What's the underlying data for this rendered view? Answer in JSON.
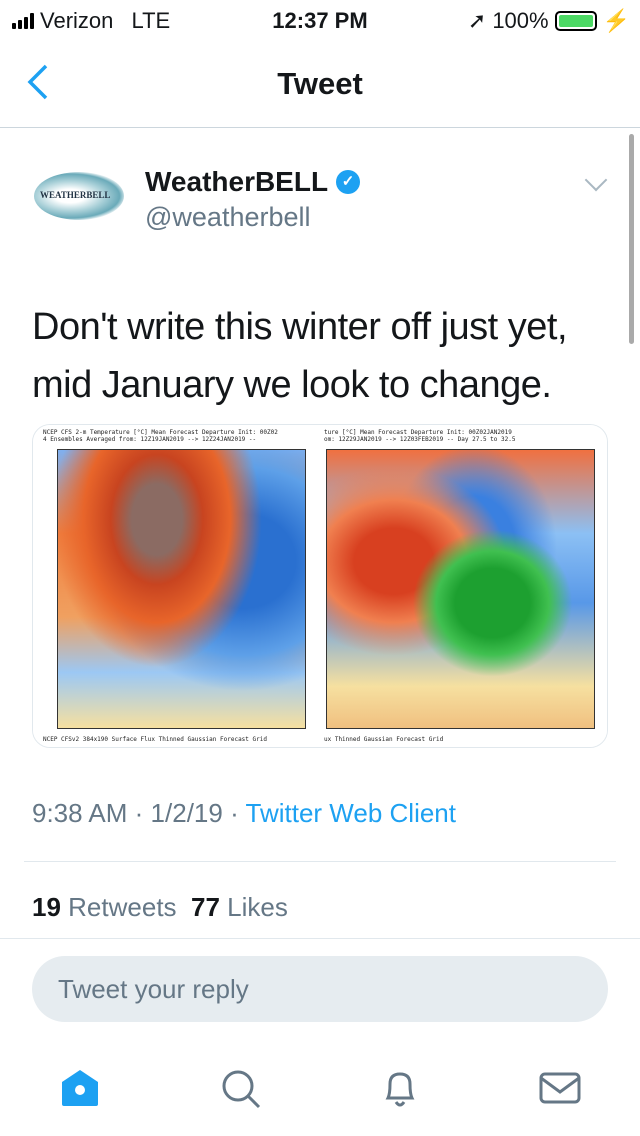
{
  "status": {
    "carrier": "Verizon",
    "network": "LTE",
    "time": "12:37 PM",
    "battery": "100%",
    "battery_level": 1.0
  },
  "nav": {
    "title": "Tweet",
    "back_icon": "chevron-left-icon"
  },
  "tweet": {
    "name": "WeatherBELL",
    "handle": "@weatherbell",
    "avatar_text": "WEATHERBELL",
    "verified": true,
    "text": "Don't write this winter off just yet, mid January we look to change.",
    "images": [
      {
        "header": "NCEP CFS 2-m Temperature [°C] Mean Forecast Departure Init: 00Z02\n4 Ensembles Averaged from: 12Z19JAN2019 --> 12Z24JAN2019 --",
        "footer": "NCEP CFSv2 384x190 Surface Flux Thinned Gaussian Forecast Grid"
      },
      {
        "header": "ture [°C] Mean Forecast Departure Init: 00Z02JAN2019\nom: 12Z29JAN2019 --> 12Z03FEB2019 -- Day 27.5 to 32.5",
        "footer": "ux Thinned Gaussian Forecast Grid"
      }
    ],
    "time": "9:38 AM",
    "date": "1/2/19",
    "source": "Twitter Web Client",
    "sep": "·",
    "retweets": "19",
    "retweets_label": "Retweets",
    "likes": "77",
    "likes_label": "Likes"
  },
  "reply": {
    "placeholder": "Tweet your reply"
  },
  "colors": {
    "accent": "#1da1f2",
    "muted": "#657786"
  }
}
